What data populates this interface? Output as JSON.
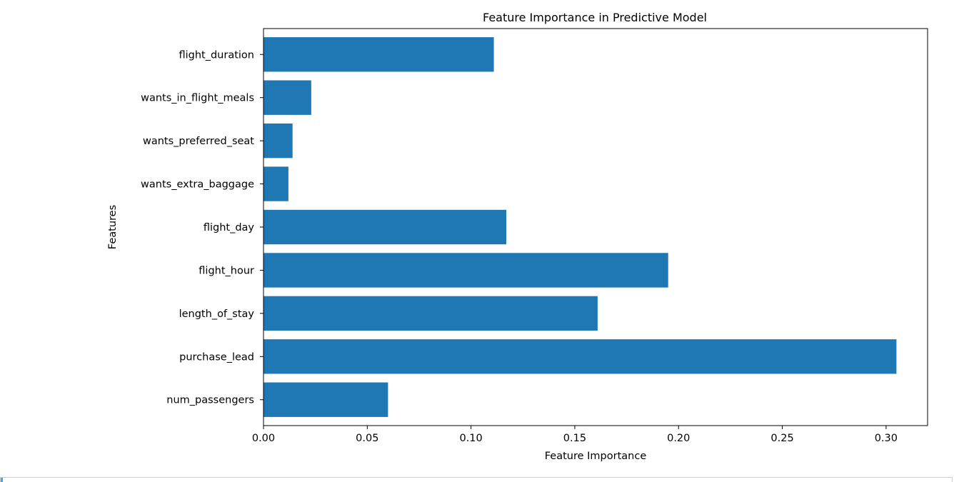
{
  "chart_data": {
    "type": "bar",
    "orientation": "horizontal",
    "title": "Feature Importance in Predictive Model",
    "xlabel": "Feature Importance",
    "ylabel": "Features",
    "categories": [
      "num_passengers",
      "purchase_lead",
      "length_of_stay",
      "flight_hour",
      "flight_day",
      "wants_extra_baggage",
      "wants_preferred_seat",
      "wants_in_flight_meals",
      "flight_duration"
    ],
    "values": [
      0.06,
      0.305,
      0.161,
      0.195,
      0.117,
      0.012,
      0.014,
      0.023,
      0.111
    ],
    "xlim": [
      0.0,
      0.32
    ],
    "xticks": [
      0.0,
      0.05,
      0.1,
      0.15,
      0.2,
      0.25,
      0.3
    ],
    "xtick_labels": [
      "0.00",
      "0.05",
      "0.10",
      "0.15",
      "0.20",
      "0.25",
      "0.30"
    ],
    "bar_color": "#1f77b4",
    "grid": false
  }
}
